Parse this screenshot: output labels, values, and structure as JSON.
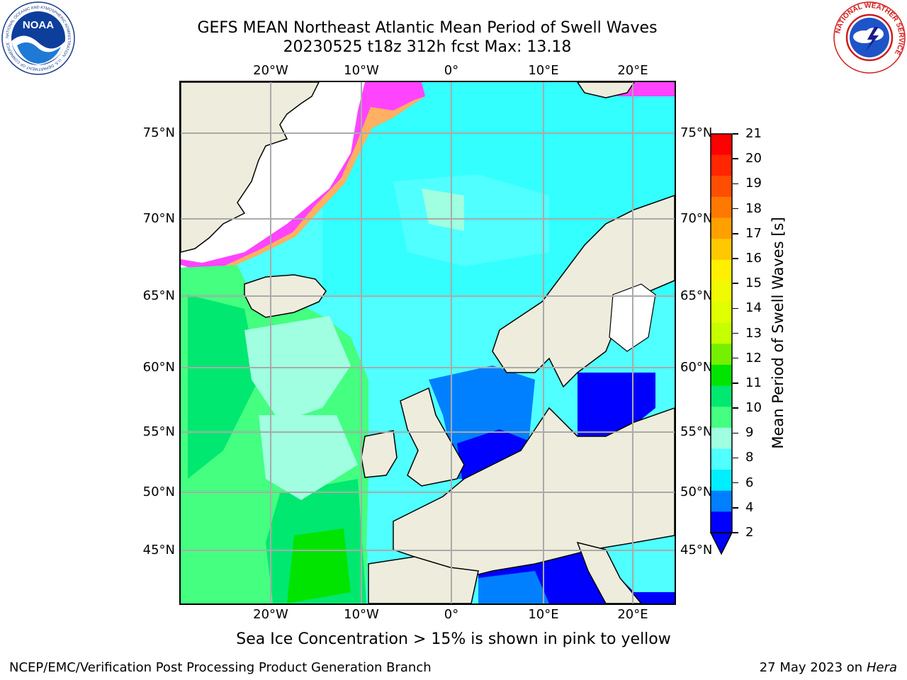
{
  "title": {
    "line1": "GEFS MEAN Northeast Atlantic Mean Period of Swell Waves",
    "line2": "20230525 t18z 312h fcst   Max: 13.18"
  },
  "logos": {
    "noaa": {
      "text": "NOAA",
      "ring_text": "NATIONAL OCEANIC AND ATMOSPHERIC ADMINISTRATION · U.S. DEPARTMENT OF COMMERCE"
    },
    "nws": {
      "ring_text": "NATIONAL WEATHER SERVICE"
    }
  },
  "map": {
    "lon_labels": [
      "20°W",
      "10°W",
      "0°",
      "10°E",
      "20°E"
    ],
    "lat_labels": [
      "75°N",
      "70°N",
      "65°N",
      "60°N",
      "55°N",
      "50°N",
      "45°N"
    ],
    "land_color": "#eeecdc",
    "ice_colors": [
      "#ff44ff",
      "#ffb060",
      "#ffe000"
    ]
  },
  "colorbar": {
    "label": "Mean Period of Swell Waves [s]",
    "ticks": [
      "21",
      "20",
      "19",
      "18",
      "17",
      "16",
      "15",
      "14",
      "13",
      "12",
      "11",
      "10",
      "9",
      "8",
      "6",
      "4",
      "2"
    ],
    "colors": [
      "#ff0000",
      "#ff2600",
      "#ff4e00",
      "#ff7800",
      "#ffa000",
      "#ffc800",
      "#fff000",
      "#f0fa00",
      "#e0ff00",
      "#c6ff00",
      "#74f000",
      "#00e400",
      "#00e870",
      "#44ff80",
      "#a0ffe0",
      "#50ffff",
      "#00eeff",
      "#0080ff",
      "#0000ff"
    ]
  },
  "footnote": "Sea Ice Concentration > 15% is shown in pink to yellow",
  "credit": "NCEP/EMC/Verification Post Processing Product Generation Branch",
  "date": {
    "text": "27 May 2023 on",
    "host": "Hera"
  }
}
